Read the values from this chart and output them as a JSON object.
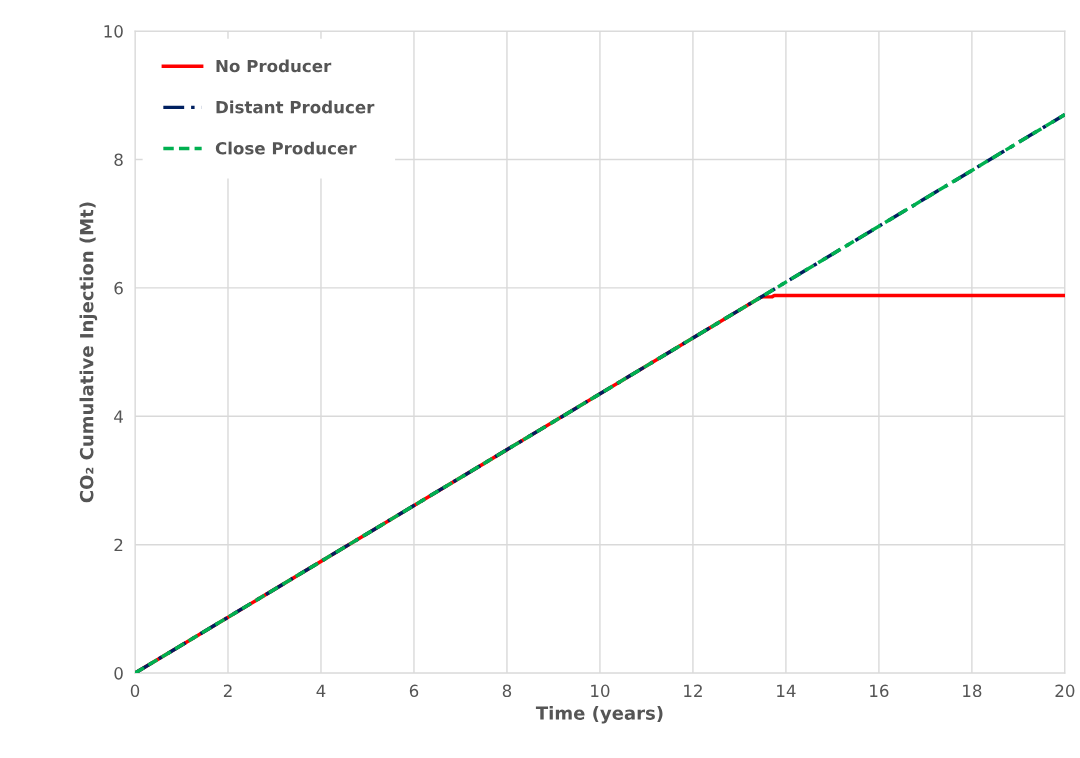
{
  "chart_data": {
    "type": "line",
    "xlabel": "Time (years)",
    "ylabel": "CO₂ Cumulative Injection (Mt)",
    "xlim": [
      0,
      20
    ],
    "xticks": [
      0,
      2,
      4,
      6,
      8,
      10,
      12,
      14,
      16,
      18,
      20
    ],
    "ylim": [
      0,
      10
    ],
    "yticks": [
      0,
      2,
      4,
      6,
      8,
      10
    ],
    "grid": true,
    "legend": "top left",
    "marker": "none",
    "series": [
      {
        "name": "No Producer",
        "color": "#ff0000",
        "line_style": "solid",
        "x": [
          0,
          13.45,
          13.5,
          13.7,
          13.75,
          20
        ],
        "values": [
          0,
          5.85,
          5.86,
          5.86,
          5.88,
          5.88
        ]
      },
      {
        "name": "Distant Producer",
        "color": "#002060",
        "line_style": "dashdot",
        "x": [
          0,
          20
        ],
        "values": [
          0,
          8.7
        ]
      },
      {
        "name": "Close Producer",
        "color": "#00b050",
        "line_style": "dashed",
        "x": [
          0,
          20
        ],
        "values": [
          0,
          8.7
        ]
      }
    ]
  }
}
